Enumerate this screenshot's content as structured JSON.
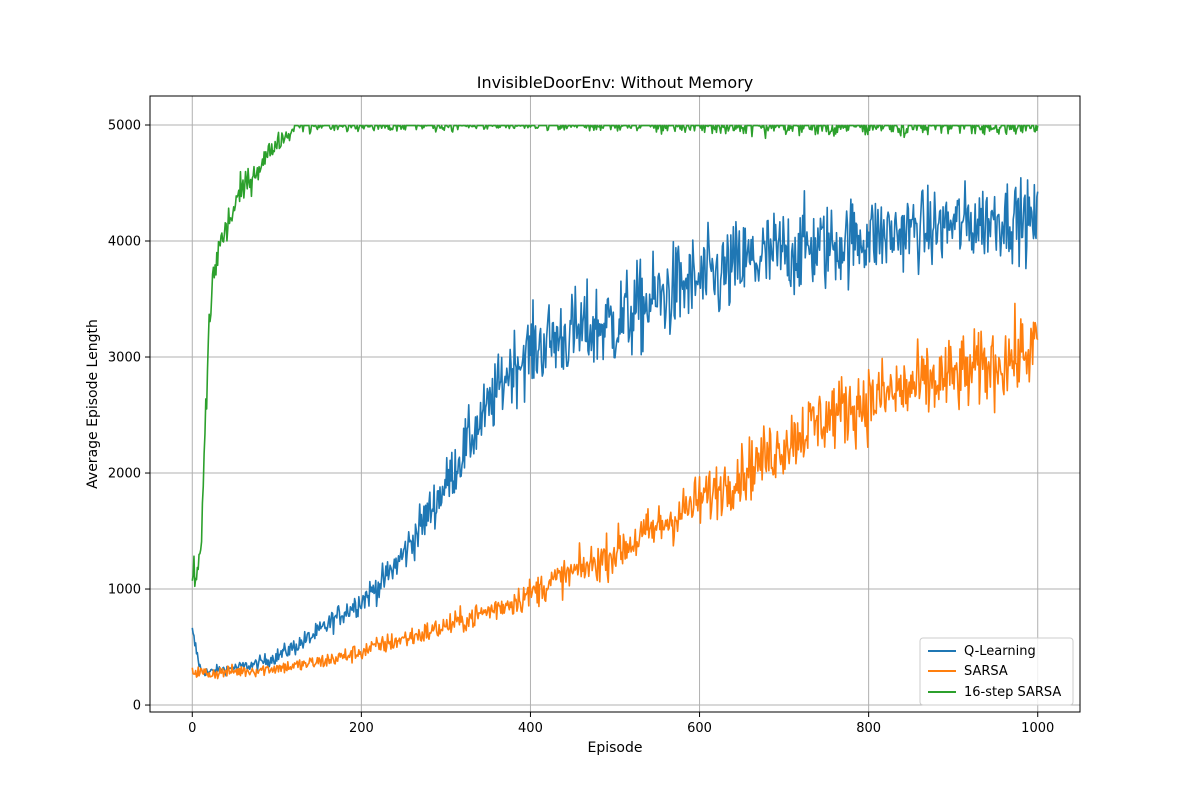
{
  "chart_data": {
    "type": "line",
    "title": "InvisibleDoorEnv: Without Memory",
    "xlabel": "Episode",
    "ylabel": "Average Episode Length",
    "xlim": [
      -50,
      1050
    ],
    "ylim": [
      -60,
      5250
    ],
    "xticks": [
      0,
      200,
      400,
      600,
      800,
      1000
    ],
    "yticks": [
      0,
      1000,
      2000,
      3000,
      4000,
      5000
    ],
    "grid": true,
    "legend_position": "lower-right",
    "series": [
      {
        "name": "Q-Learning",
        "color": "#1f77b4",
        "x": [
          0,
          10,
          20,
          30,
          50,
          75,
          100,
          125,
          150,
          175,
          200,
          225,
          250,
          275,
          300,
          325,
          350,
          375,
          400,
          425,
          450,
          475,
          500,
          525,
          550,
          575,
          600,
          625,
          650,
          675,
          700,
          725,
          750,
          775,
          800,
          825,
          850,
          875,
          900,
          925,
          950,
          975,
          1000
        ],
        "y": [
          620,
          300,
          280,
          300,
          320,
          350,
          420,
          520,
          630,
          780,
          900,
          1060,
          1300,
          1600,
          1900,
          2250,
          2550,
          2900,
          3050,
          3150,
          3200,
          3250,
          3300,
          3400,
          3500,
          3600,
          3650,
          3700,
          3800,
          3850,
          3900,
          3950,
          3950,
          4000,
          4050,
          4050,
          4100,
          4100,
          4150,
          4150,
          4200,
          4200,
          4150
        ],
        "noise": [
          80,
          40,
          40,
          40,
          40,
          50,
          60,
          70,
          80,
          90,
          100,
          120,
          150,
          180,
          200,
          230,
          250,
          280,
          300,
          320,
          340,
          350,
          360,
          360,
          360,
          360,
          360,
          360,
          360,
          360,
          360,
          350,
          340,
          330,
          320,
          310,
          300,
          300,
          300,
          300,
          300,
          300,
          300
        ]
      },
      {
        "name": "SARSA",
        "color": "#ff7f0e",
        "x": [
          0,
          10,
          20,
          30,
          50,
          75,
          100,
          125,
          150,
          175,
          200,
          225,
          250,
          275,
          300,
          325,
          350,
          375,
          400,
          425,
          450,
          475,
          500,
          525,
          550,
          575,
          600,
          625,
          650,
          675,
          700,
          725,
          750,
          775,
          800,
          825,
          850,
          875,
          900,
          925,
          950,
          975,
          1000
        ],
        "y": [
          300,
          280,
          270,
          280,
          290,
          300,
          320,
          340,
          370,
          410,
          460,
          520,
          570,
          620,
          680,
          740,
          810,
          880,
          960,
          1060,
          1140,
          1220,
          1320,
          1420,
          1530,
          1640,
          1760,
          1880,
          2000,
          2120,
          2250,
          2380,
          2480,
          2560,
          2620,
          2680,
          2730,
          2780,
          2830,
          2880,
          2940,
          3000,
          3100
        ],
        "noise": [
          60,
          50,
          50,
          50,
          50,
          50,
          50,
          55,
          60,
          65,
          70,
          75,
          80,
          85,
          90,
          95,
          100,
          110,
          120,
          130,
          140,
          150,
          170,
          180,
          190,
          200,
          210,
          220,
          230,
          240,
          250,
          260,
          270,
          280,
          290,
          300,
          300,
          300,
          300,
          300,
          300,
          300,
          300
        ]
      },
      {
        "name": "16-step SARSA",
        "color": "#2ca02c",
        "x": [
          0,
          5,
          10,
          15,
          20,
          25,
          30,
          40,
          50,
          60,
          70,
          80,
          90,
          100,
          110,
          120,
          140,
          160,
          200,
          300,
          400,
          500,
          600,
          700,
          800,
          900,
          1000
        ],
        "y": [
          1100,
          1100,
          1300,
          2300,
          3300,
          3700,
          3900,
          4100,
          4300,
          4450,
          4550,
          4650,
          4750,
          4850,
          4900,
          4950,
          4970,
          4980,
          4980,
          4980,
          4980,
          4980,
          4970,
          4960,
          4960,
          4960,
          4960
        ],
        "noise": [
          150,
          150,
          150,
          200,
          200,
          180,
          160,
          150,
          130,
          120,
          110,
          100,
          90,
          70,
          60,
          50,
          40,
          35,
          35,
          35,
          30,
          30,
          50,
          50,
          50,
          50,
          50
        ]
      }
    ]
  }
}
